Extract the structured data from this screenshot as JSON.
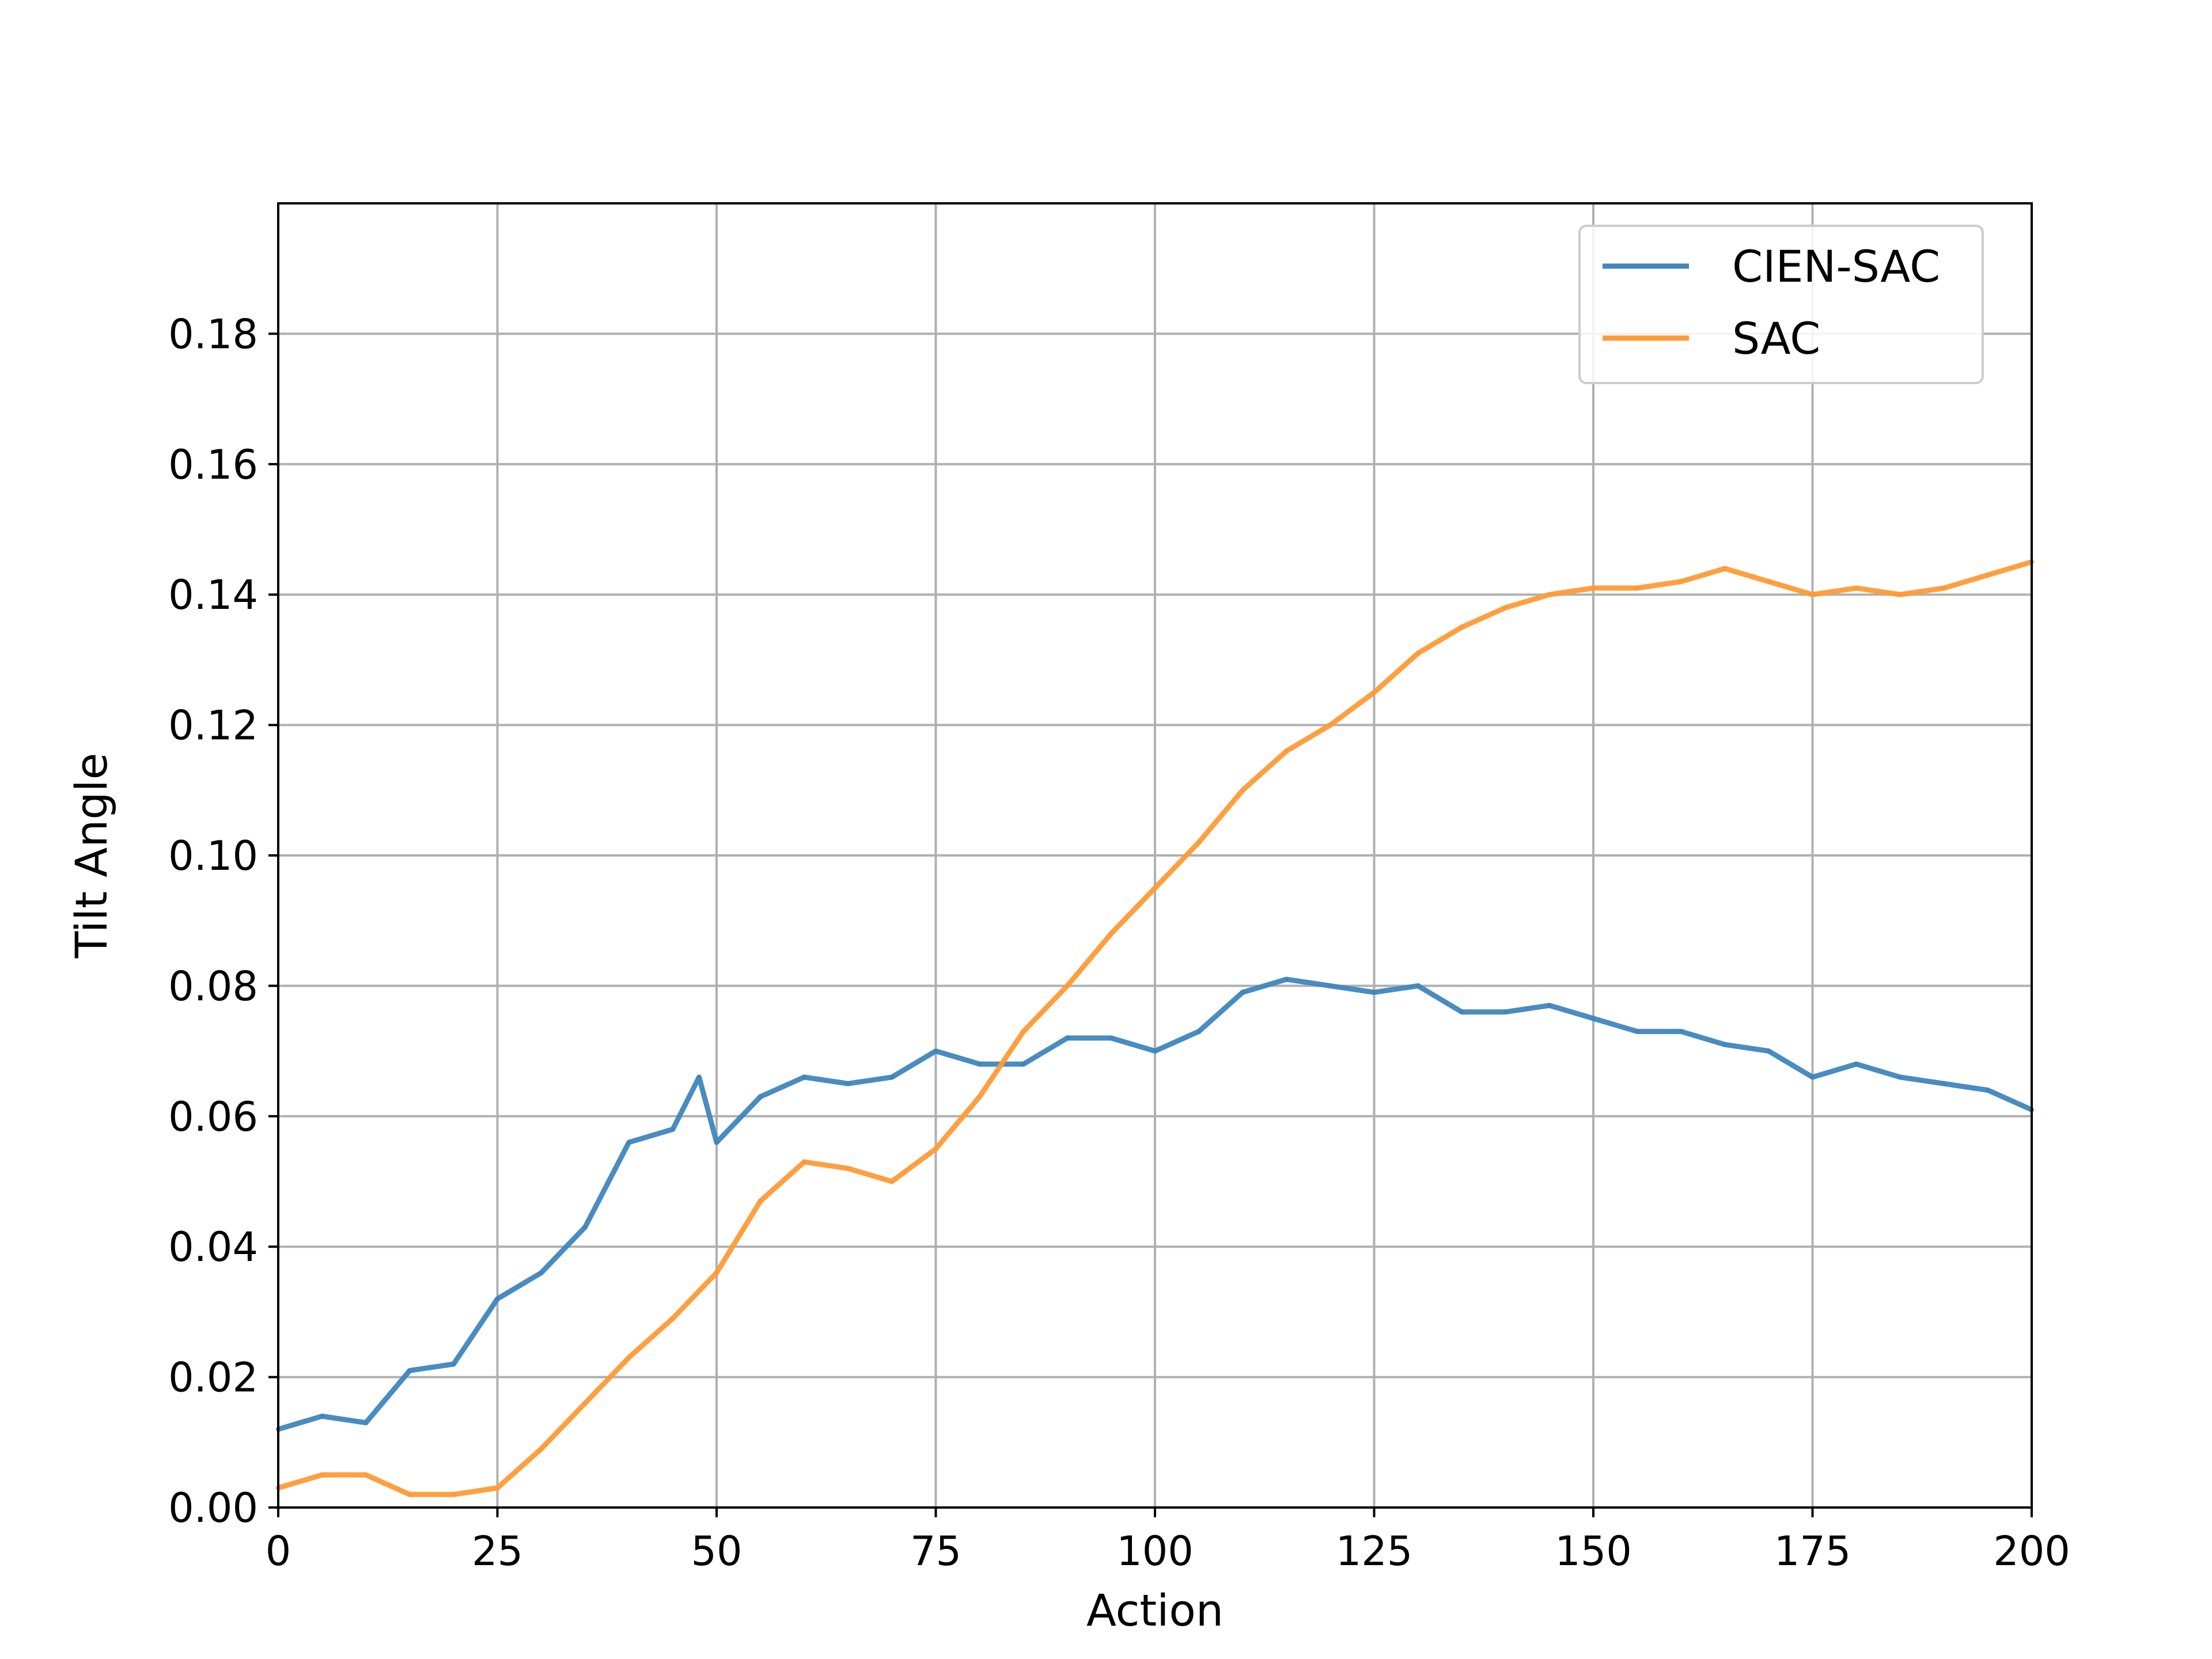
{
  "chart_data": {
    "type": "line",
    "title": "",
    "xlabel": "Action",
    "ylabel": "Tilt Angle",
    "xlim": [
      0,
      200
    ],
    "ylim": [
      0,
      0.2
    ],
    "xticks": [
      0,
      25,
      50,
      75,
      100,
      125,
      150,
      175,
      200
    ],
    "xtick_labels": [
      "0",
      "25",
      "50",
      "75",
      "100",
      "125",
      "150",
      "175",
      "200"
    ],
    "yticks": [
      0,
      0.02,
      0.04,
      0.06,
      0.08,
      0.1,
      0.12,
      0.14,
      0.16,
      0.18
    ],
    "ytick_labels": [
      "0.00",
      "0.02",
      "0.04",
      "0.06",
      "0.08",
      "0.10",
      "0.12",
      "0.14",
      "0.16",
      "0.18"
    ],
    "grid": true,
    "legend_position": "top-right",
    "series": [
      {
        "name": "CIEN-SAC",
        "color": "#3f86bd",
        "x": [
          0,
          5,
          10,
          15,
          20,
          25,
          30,
          35,
          40,
          45,
          48,
          50,
          55,
          60,
          65,
          70,
          75,
          80,
          85,
          90,
          95,
          100,
          105,
          110,
          115,
          120,
          125,
          130,
          135,
          140,
          145,
          150,
          155,
          160,
          165,
          170,
          175,
          180,
          185,
          190,
          195,
          200
        ],
        "y": [
          0.012,
          0.014,
          0.013,
          0.021,
          0.022,
          0.032,
          0.036,
          0.043,
          0.056,
          0.058,
          0.066,
          0.056,
          0.063,
          0.066,
          0.065,
          0.066,
          0.07,
          0.068,
          0.068,
          0.072,
          0.072,
          0.07,
          0.073,
          0.079,
          0.081,
          0.08,
          0.079,
          0.08,
          0.076,
          0.076,
          0.077,
          0.075,
          0.073,
          0.073,
          0.071,
          0.07,
          0.066,
          0.068,
          0.066,
          0.065,
          0.064,
          0.061
        ]
      },
      {
        "name": "SAC",
        "color": "#ff9a36",
        "x": [
          0,
          5,
          10,
          15,
          20,
          25,
          30,
          35,
          40,
          45,
          50,
          55,
          60,
          65,
          70,
          75,
          80,
          85,
          90,
          95,
          100,
          105,
          110,
          115,
          120,
          125,
          130,
          135,
          140,
          145,
          150,
          155,
          160,
          165,
          170,
          175,
          180,
          185,
          190,
          195,
          200
        ],
        "y": [
          0.003,
          0.005,
          0.005,
          0.002,
          0.002,
          0.003,
          0.009,
          0.016,
          0.023,
          0.029,
          0.036,
          0.047,
          0.053,
          0.052,
          0.05,
          0.055,
          0.063,
          0.073,
          0.08,
          0.088,
          0.095,
          0.102,
          0.11,
          0.116,
          0.12,
          0.125,
          0.131,
          0.135,
          0.138,
          0.14,
          0.141,
          0.141,
          0.142,
          0.144,
          0.142,
          0.14,
          0.141,
          0.14,
          0.141,
          0.143,
          0.145
        ]
      }
    ]
  }
}
